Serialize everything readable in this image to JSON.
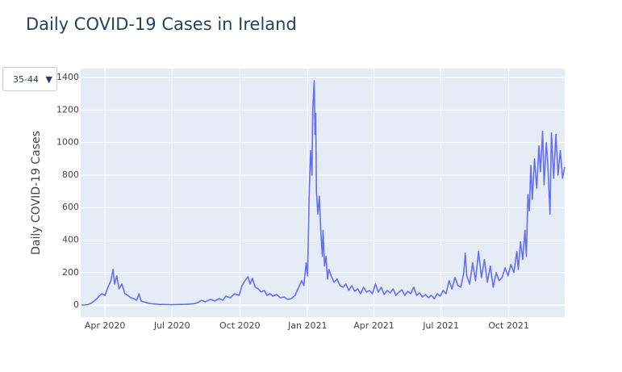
{
  "controls": {
    "age_group": "35-44"
  },
  "chart_data": {
    "type": "line",
    "title": "Daily COVID-19 Cases in Ireland",
    "y_label": "Daily COVID-19 Cases",
    "grid": true,
    "background": "#e5ecf6",
    "xlim": [
      "2020-02-28",
      "2021-12-16"
    ],
    "ylim": [
      -74,
      1455
    ],
    "xticks": [
      {
        "value": "2020-04-01",
        "label": "Apr 2020"
      },
      {
        "value": "2020-07-01",
        "label": "Jul 2020"
      },
      {
        "value": "2020-10-01",
        "label": "Oct 2020"
      },
      {
        "value": "2021-01-01",
        "label": "Jan 2021"
      },
      {
        "value": "2021-04-01",
        "label": "Apr 2021"
      },
      {
        "value": "2021-07-01",
        "label": "Jul 2021"
      },
      {
        "value": "2021-10-01",
        "label": "Oct 2021"
      }
    ],
    "yticks": [
      0,
      200,
      400,
      600,
      800,
      1000,
      1200,
      1400
    ],
    "series": [
      {
        "color": "#636efa",
        "x": [
          "2020-02-29",
          "2020-03-04",
          "2020-03-08",
          "2020-03-12",
          "2020-03-16",
          "2020-03-20",
          "2020-03-24",
          "2020-03-28",
          "2020-04-01",
          "2020-04-05",
          "2020-04-09",
          "2020-04-12",
          "2020-04-14",
          "2020-04-17",
          "2020-04-20",
          "2020-04-24",
          "2020-04-28",
          "2020-05-02",
          "2020-05-06",
          "2020-05-10",
          "2020-05-14",
          "2020-05-17",
          "2020-05-20",
          "2020-05-25",
          "2020-05-30",
          "2020-06-05",
          "2020-06-12",
          "2020-06-20",
          "2020-06-30",
          "2020-07-10",
          "2020-07-20",
          "2020-07-30",
          "2020-08-05",
          "2020-08-10",
          "2020-08-15",
          "2020-08-22",
          "2020-08-28",
          "2020-09-03",
          "2020-09-08",
          "2020-09-12",
          "2020-09-18",
          "2020-09-24",
          "2020-09-30",
          "2020-10-04",
          "2020-10-08",
          "2020-10-12",
          "2020-10-15",
          "2020-10-18",
          "2020-10-22",
          "2020-10-26",
          "2020-10-30",
          "2020-11-03",
          "2020-11-07",
          "2020-11-11",
          "2020-11-15",
          "2020-11-20",
          "2020-11-25",
          "2020-11-30",
          "2020-12-05",
          "2020-12-10",
          "2020-12-15",
          "2020-12-20",
          "2020-12-24",
          "2020-12-27",
          "2020-12-30",
          "2021-01-01",
          "2021-01-03",
          "2021-01-05",
          "2021-01-07",
          "2021-01-08",
          "2021-01-10",
          "2021-01-11",
          "2021-01-12",
          "2021-01-13",
          "2021-01-15",
          "2021-01-17",
          "2021-01-19",
          "2021-01-21",
          "2021-01-22",
          "2021-01-24",
          "2021-01-26",
          "2021-01-28",
          "2021-01-30",
          "2021-02-02",
          "2021-02-06",
          "2021-02-10",
          "2021-02-14",
          "2021-02-18",
          "2021-02-22",
          "2021-02-26",
          "2021-03-02",
          "2021-03-06",
          "2021-03-10",
          "2021-03-14",
          "2021-03-18",
          "2021-03-22",
          "2021-03-26",
          "2021-03-30",
          "2021-04-03",
          "2021-04-07",
          "2021-04-11",
          "2021-04-15",
          "2021-04-19",
          "2021-04-23",
          "2021-04-27",
          "2021-05-01",
          "2021-05-05",
          "2021-05-09",
          "2021-05-13",
          "2021-05-17",
          "2021-05-21",
          "2021-05-25",
          "2021-05-29",
          "2021-06-02",
          "2021-06-06",
          "2021-06-10",
          "2021-06-14",
          "2021-06-18",
          "2021-06-22",
          "2021-06-26",
          "2021-06-30",
          "2021-07-04",
          "2021-07-08",
          "2021-07-12",
          "2021-07-16",
          "2021-07-20",
          "2021-07-24",
          "2021-07-28",
          "2021-08-01",
          "2021-08-03",
          "2021-08-05",
          "2021-08-09",
          "2021-08-13",
          "2021-08-17",
          "2021-08-21",
          "2021-08-25",
          "2021-08-29",
          "2021-09-02",
          "2021-09-06",
          "2021-09-10",
          "2021-09-14",
          "2021-09-18",
          "2021-09-22",
          "2021-09-26",
          "2021-09-30",
          "2021-10-04",
          "2021-10-08",
          "2021-10-12",
          "2021-10-14",
          "2021-10-17",
          "2021-10-20",
          "2021-10-23",
          "2021-10-25",
          "2021-10-27",
          "2021-10-29",
          "2021-10-31",
          "2021-11-02",
          "2021-11-05",
          "2021-11-08",
          "2021-11-11",
          "2021-11-13",
          "2021-11-16",
          "2021-11-18",
          "2021-11-21",
          "2021-11-23",
          "2021-11-26",
          "2021-11-28",
          "2021-12-01",
          "2021-12-04",
          "2021-12-07",
          "2021-12-10",
          "2021-12-13",
          "2021-12-16"
        ],
        "values": [
          0,
          1,
          3,
          8,
          20,
          35,
          55,
          70,
          60,
          110,
          150,
          220,
          130,
          180,
          100,
          130,
          70,
          60,
          45,
          40,
          30,
          70,
          25,
          18,
          12,
          8,
          5,
          4,
          3,
          4,
          5,
          8,
          15,
          30,
          20,
          35,
          25,
          40,
          30,
          55,
          45,
          70,
          60,
          120,
          150,
          175,
          130,
          165,
          110,
          100,
          80,
          90,
          60,
          70,
          55,
          65,
          45,
          50,
          35,
          40,
          60,
          110,
          150,
          120,
          260,
          180,
          650,
          950,
          800,
          1200,
          1380,
          1050,
          1180,
          700,
          560,
          670,
          450,
          300,
          460,
          240,
          300,
          160,
          220,
          180,
          140,
          160,
          120,
          110,
          130,
          90,
          120,
          85,
          100,
          70,
          110,
          80,
          90,
          70,
          130,
          80,
          110,
          65,
          90,
          75,
          100,
          60,
          80,
          95,
          60,
          85,
          70,
          110,
          60,
          75,
          50,
          65,
          45,
          60,
          40,
          70,
          55,
          90,
          70,
          150,
          100,
          170,
          120,
          110,
          200,
          320,
          180,
          130,
          260,
          150,
          330,
          170,
          280,
          140,
          240,
          110,
          200,
          150,
          170,
          230,
          180,
          250,
          200,
          330,
          220,
          390,
          280,
          460,
          300,
          680,
          580,
          860,
          650,
          900,
          720,
          980,
          820,
          1070,
          740,
          1000,
          870,
          560,
          1060,
          780,
          1050,
          800,
          950,
          780,
          850
        ]
      }
    ]
  }
}
